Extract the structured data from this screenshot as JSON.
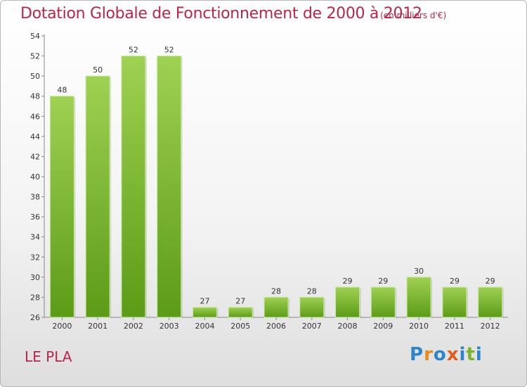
{
  "header": {
    "title": "Dotation Globale de Fonctionnement de 2000 à 2012",
    "unit": "(en milliers d'€)"
  },
  "footer": {
    "place": "LE PLA",
    "logo": {
      "letters": [
        "P",
        "r",
        "o",
        "x",
        "i",
        "t",
        "i"
      ],
      "colors": [
        "#2a86c8",
        "#e68a1c",
        "#2a86c8",
        "#e05e1d",
        "#2a86c8",
        "#78b52b",
        "#2a86c8"
      ]
    }
  },
  "colors": {
    "bar_light": "#9fd153",
    "bar_dark": "#5c9b17",
    "title": "#b8264a"
  },
  "chart_data": {
    "type": "bar",
    "title": "Dotation Globale de Fonctionnement de 2000 à 2012",
    "xlabel": "",
    "ylabel": "",
    "categories": [
      "2000",
      "2001",
      "2002",
      "2003",
      "2004",
      "2005",
      "2006",
      "2007",
      "2008",
      "2009",
      "2010",
      "2011",
      "2012"
    ],
    "values": [
      48,
      50,
      52,
      52,
      27,
      27,
      28,
      28,
      29,
      29,
      30,
      29,
      29
    ],
    "ylim": [
      26,
      54
    ],
    "yticks": [
      26,
      28,
      30,
      32,
      34,
      36,
      38,
      40,
      42,
      44,
      46,
      48,
      50,
      52,
      54
    ],
    "grid": false,
    "legend": "none"
  }
}
